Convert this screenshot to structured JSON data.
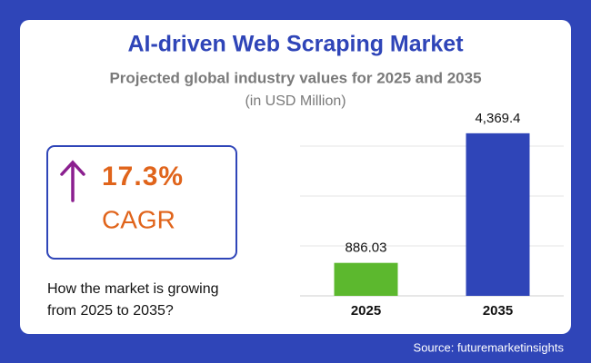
{
  "chart_data": {
    "type": "bar",
    "title": "AI-driven Web Scraping Market",
    "subtitle": "Projected global industry values for 2025 and 2035",
    "unit_note": "(in USD Million)",
    "categories": [
      "2025",
      "2035"
    ],
    "values": [
      886.03,
      4369.4
    ],
    "value_labels": [
      "886.03",
      "4,369.4"
    ],
    "colors": [
      "#5cb82e",
      "#2f45b8"
    ],
    "ylim": [
      0,
      5000
    ]
  },
  "cagr": {
    "value": "17.3%",
    "label": "CAGR"
  },
  "question": [
    "How the market is growing",
    "from 2025 to 2035?"
  ],
  "source": "Source: futuremarketinsights"
}
